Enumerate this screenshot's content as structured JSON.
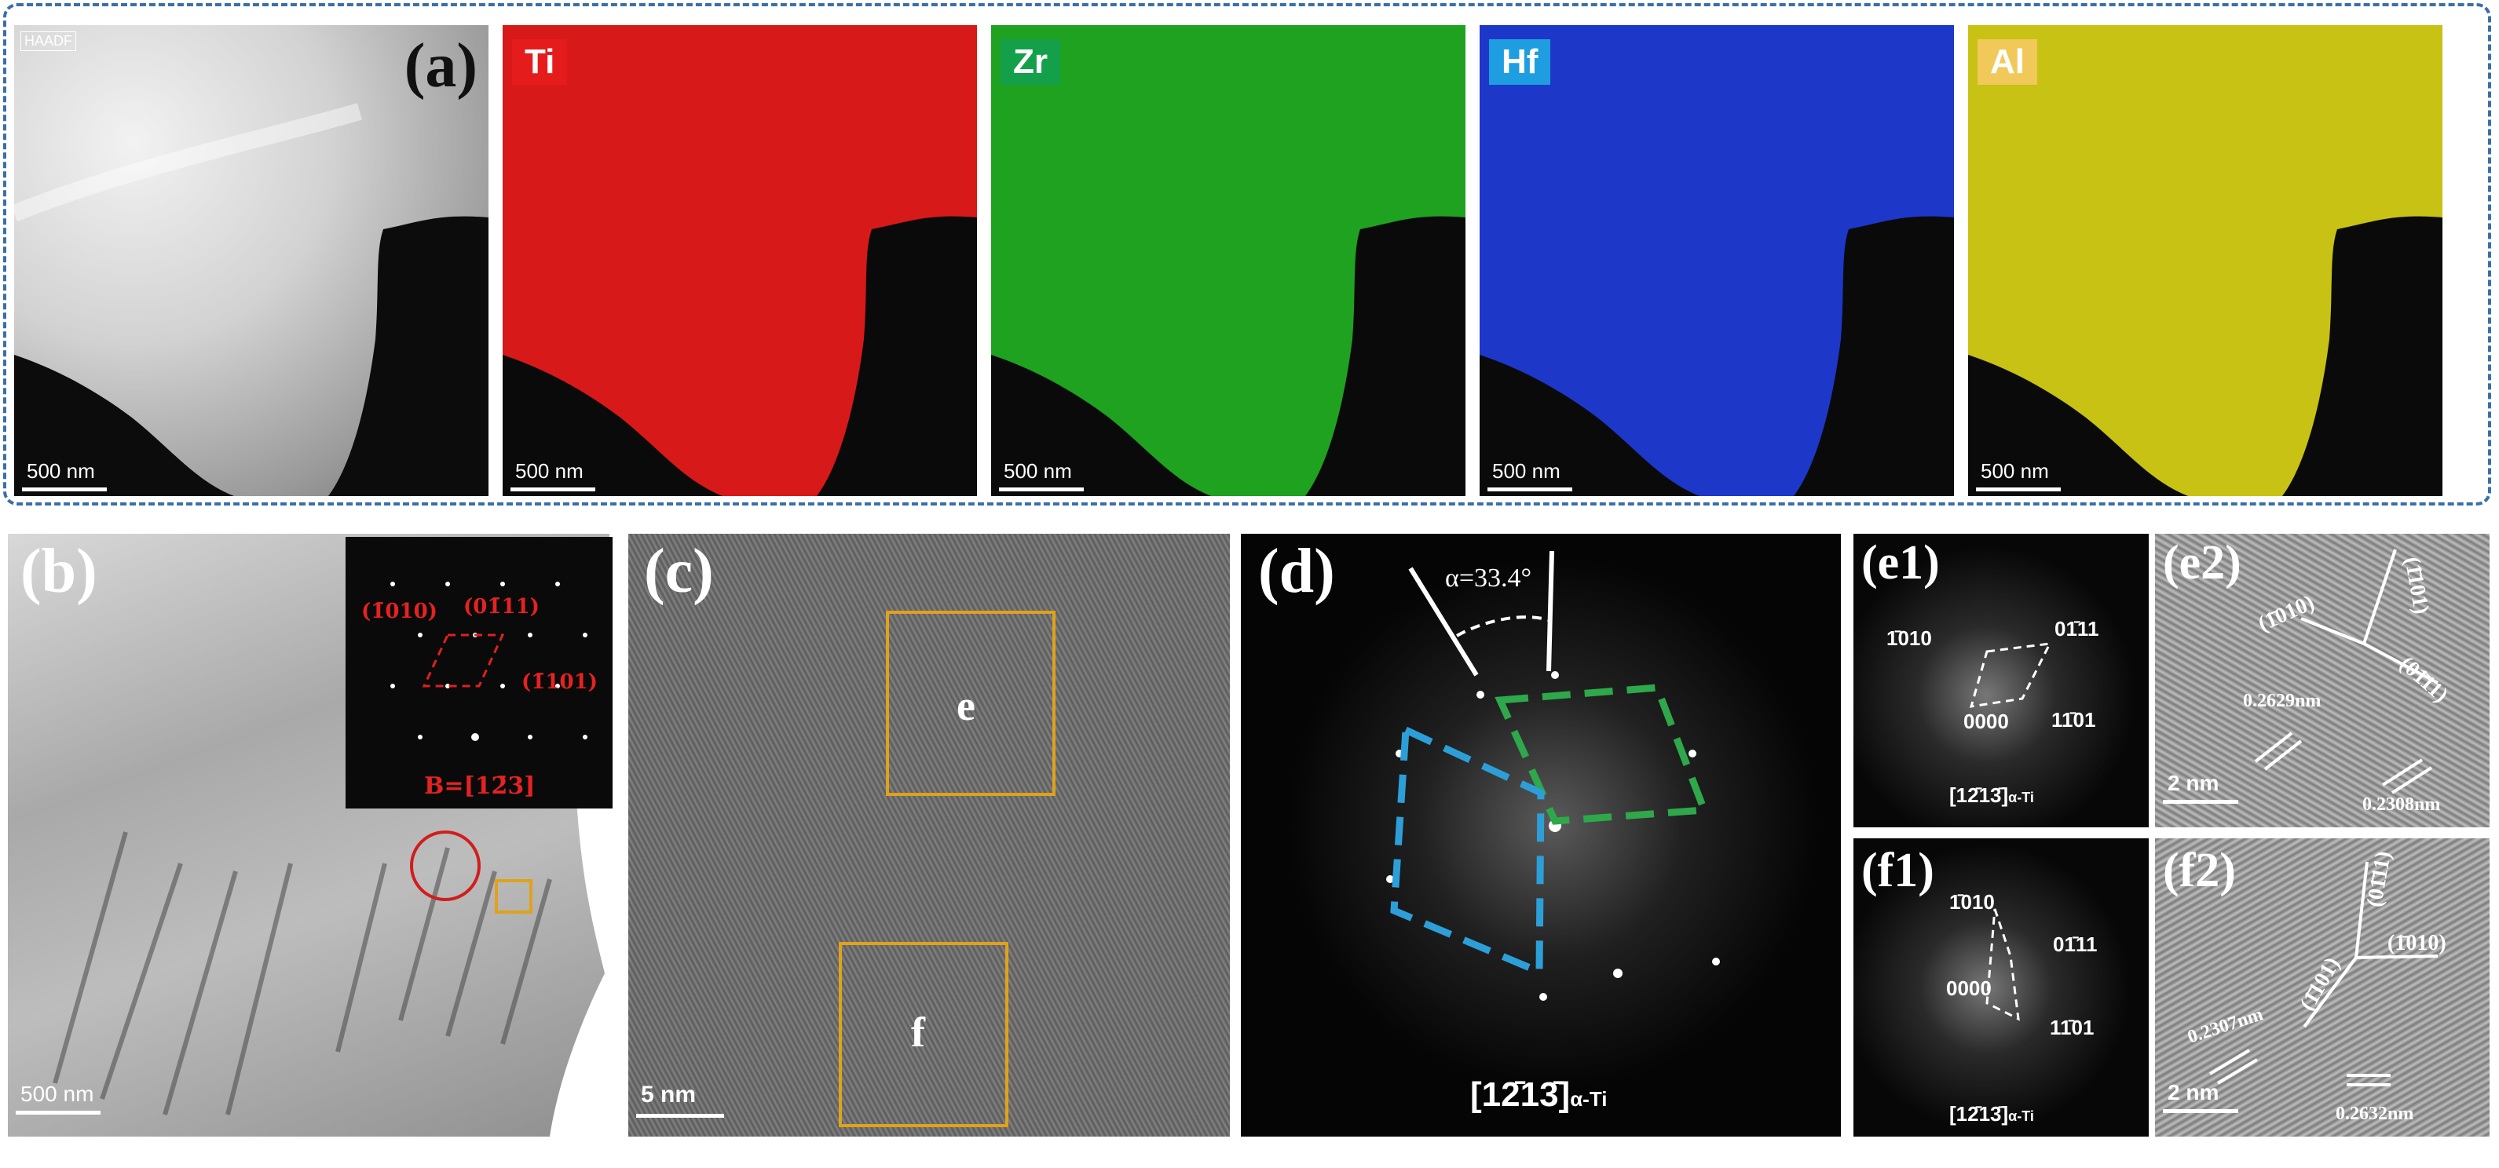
{
  "panel_a": {
    "label": "(a)",
    "haadf_label": "HAADF",
    "maps": [
      {
        "element": "Ti",
        "color": "#d81919",
        "tag_bg": "#e51c1c"
      },
      {
        "element": "Zr",
        "color": "#1fa21f",
        "tag_bg": "#14a04a"
      },
      {
        "element": "Hf",
        "color": "#1d37c9",
        "tag_bg": "#1e9ee0"
      },
      {
        "element": "Al",
        "color": "#c8c214",
        "tag_bg": "#f1c95a"
      }
    ],
    "scale": "500 nm"
  },
  "panel_b": {
    "label": "(b)",
    "scale": "500 nm",
    "saed": {
      "spot1": "(1̄010)",
      "spot2": "(01̄11)",
      "spot3": "(1̄101)",
      "zone": "B=[12̄3]"
    }
  },
  "panel_c": {
    "label": "(c)",
    "scale": "5 nm",
    "box_e": "e",
    "box_f": "f"
  },
  "panel_d": {
    "label": "(d)",
    "angle": "α=33.4°",
    "zone": "[12̄13̄]",
    "zone_sub": "α-Ti"
  },
  "panel_e1": {
    "label": "(e1)",
    "spot_a": "1̄010",
    "spot_b": "01̄11",
    "spot_c": "0000",
    "spot_d": "11̄01",
    "zone": "[12̄13̄]",
    "zone_sub": "α-Ti"
  },
  "panel_e2": {
    "label": "(e2)",
    "plane1": "(1̄101)",
    "plane2": "(1̄010)",
    "plane3": "(01̄11)",
    "d1": "0.2629nm",
    "d2": "0.2308nm",
    "scale": "2 nm"
  },
  "panel_f1": {
    "label": "(f1)",
    "spot_a": "1̄010",
    "spot_b": "01̄11",
    "spot_c": "0000",
    "spot_d": "11̄01",
    "zone": "[12̄13̄]",
    "zone_sub": "α-Ti"
  },
  "panel_f2": {
    "label": "(f2)",
    "plane1": "(01̄11)",
    "plane2": "(1̄101)",
    "plane3": "(1̄010)",
    "d1": "0.2307nm",
    "d2": "0.2632nm",
    "scale": "2 nm"
  }
}
